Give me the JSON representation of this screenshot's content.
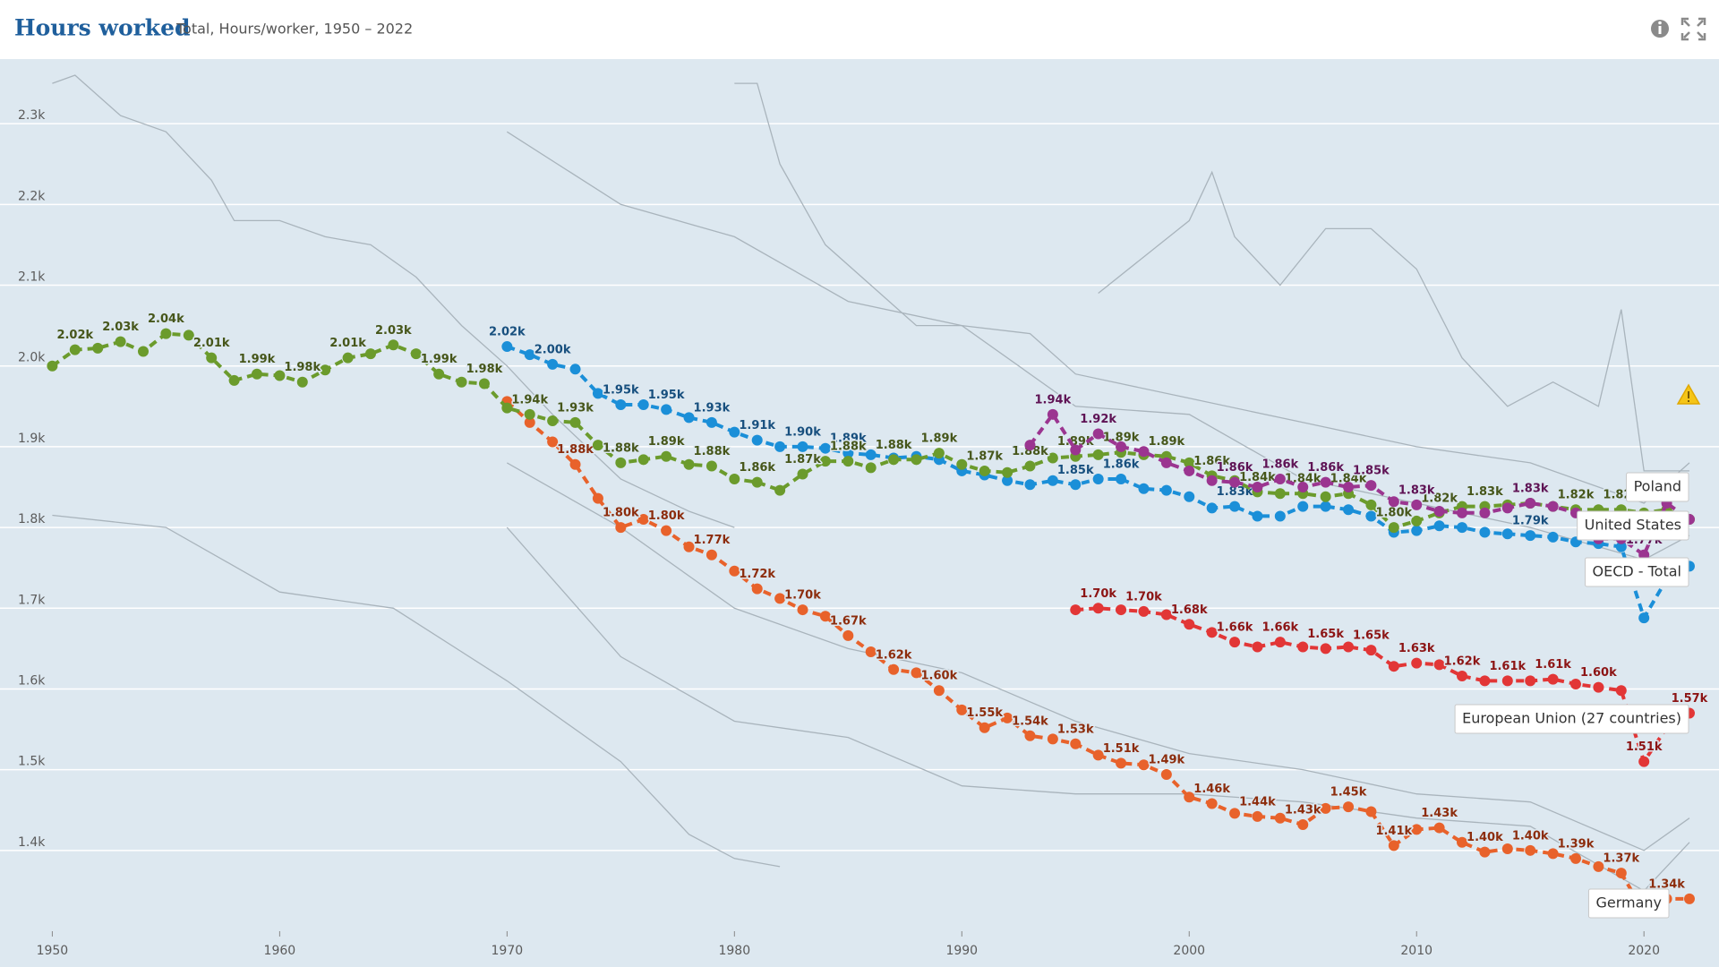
{
  "chart_data": {
    "type": "line",
    "title": "Hours worked",
    "subtitle": "Total, Hours/worker, 1950 – 2022",
    "xlim": [
      1947.7,
      2023.3
    ],
    "xticks": [
      1950,
      1960,
      1970,
      1980,
      1990,
      2000,
      2010,
      2020
    ],
    "ylim": [
      1300,
      2380
    ],
    "yticks": [
      {
        "value": 1400,
        "label": "1.4k"
      },
      {
        "value": 1500,
        "label": "1.5k"
      },
      {
        "value": 1600,
        "label": "1.6k"
      },
      {
        "value": 1700,
        "label": "1.7k"
      },
      {
        "value": 1800,
        "label": "1.8k"
      },
      {
        "value": 1900,
        "label": "1.9k"
      },
      {
        "value": 2000,
        "label": "2.0k"
      },
      {
        "value": 2100,
        "label": "2.1k"
      },
      {
        "value": 2200,
        "label": "2.2k"
      },
      {
        "value": 2300,
        "label": "2.3k"
      }
    ],
    "grid": true,
    "dashed": true,
    "x": [
      1950,
      1951,
      1952,
      1953,
      1954,
      1955,
      1956,
      1957,
      1958,
      1959,
      1960,
      1961,
      1962,
      1963,
      1964,
      1965,
      1966,
      1967,
      1968,
      1969,
      1970,
      1971,
      1972,
      1973,
      1974,
      1975,
      1976,
      1977,
      1978,
      1979,
      1980,
      1981,
      1982,
      1983,
      1984,
      1985,
      1986,
      1987,
      1988,
      1989,
      1990,
      1991,
      1992,
      1993,
      1994,
      1995,
      1996,
      1997,
      1998,
      1999,
      2000,
      2001,
      2002,
      2003,
      2004,
      2005,
      2006,
      2007,
      2008,
      2009,
      2010,
      2011,
      2012,
      2013,
      2014,
      2015,
      2016,
      2017,
      2018,
      2019,
      2020,
      2021,
      2022
    ],
    "series": [
      {
        "name": "Poland",
        "color": "#9b3590",
        "label_color": "#5e1254",
        "values": [
          null,
          null,
          null,
          null,
          null,
          null,
          null,
          null,
          null,
          null,
          null,
          null,
          null,
          null,
          null,
          null,
          null,
          null,
          null,
          null,
          null,
          null,
          null,
          null,
          null,
          null,
          null,
          null,
          null,
          null,
          null,
          null,
          null,
          null,
          null,
          null,
          null,
          null,
          null,
          null,
          null,
          null,
          null,
          1902,
          1940,
          1896,
          1916,
          1900,
          1894,
          1880,
          1870,
          1858,
          1856,
          1850,
          1860,
          1850,
          1856,
          1850,
          1852,
          1832,
          1828,
          1820,
          1818,
          1818,
          1824,
          1830,
          1826,
          1818,
          1786,
          1786,
          1766,
          1830,
          1810
        ],
        "value_labels": [
          null,
          null,
          null,
          null,
          null,
          null,
          null,
          null,
          null,
          null,
          null,
          null,
          null,
          null,
          null,
          null,
          null,
          null,
          null,
          null,
          null,
          null,
          null,
          null,
          null,
          null,
          null,
          null,
          null,
          null,
          null,
          null,
          null,
          null,
          null,
          null,
          null,
          null,
          null,
          null,
          null,
          null,
          null,
          null,
          "1.94k",
          null,
          "1.92k",
          null,
          null,
          null,
          null,
          null,
          "1.86k",
          null,
          "1.86k",
          null,
          "1.86k",
          null,
          "1.85k",
          null,
          "1.83k",
          null,
          null,
          null,
          null,
          "1.83k",
          null,
          null,
          null,
          null,
          "1.77k",
          null,
          null
        ]
      },
      {
        "name": "United States",
        "color": "#6b9b2c",
        "label_color": "#46561a",
        "values": [
          2000,
          2020,
          2022,
          2030,
          2018,
          2040,
          2038,
          2010,
          1982,
          1990,
          1988,
          1980,
          1995,
          2010,
          2015,
          2026,
          2015,
          1990,
          1980,
          1978,
          1948,
          1940,
          1932,
          1930,
          1902,
          1880,
          1884,
          1888,
          1878,
          1876,
          1860,
          1856,
          1846,
          1866,
          1882,
          1882,
          1874,
          1884,
          1884,
          1892,
          1878,
          1870,
          1868,
          1876,
          1886,
          1888,
          1890,
          1893,
          1890,
          1888,
          1880,
          1864,
          1858,
          1844,
          1842,
          1842,
          1838,
          1842,
          1828,
          1800,
          1808,
          1818,
          1826,
          1826,
          1828,
          1830,
          1826,
          1822,
          1822,
          1822,
          1818,
          1822,
          1810
        ],
        "value_labels": [
          null,
          "2.02k",
          null,
          "2.03k",
          null,
          "2.04k",
          null,
          "2.01k",
          null,
          "1.99k",
          null,
          "1.98k",
          null,
          "2.01k",
          null,
          "2.03k",
          null,
          "1.99k",
          null,
          "1.98k",
          null,
          "1.94k",
          null,
          "1.93k",
          null,
          "1.88k",
          null,
          "1.89k",
          null,
          "1.88k",
          null,
          "1.86k",
          null,
          "1.87k",
          null,
          "1.88k",
          null,
          "1.88k",
          null,
          "1.89k",
          null,
          "1.87k",
          null,
          "1.88k",
          null,
          "1.89k",
          null,
          "1.89k",
          null,
          "1.89k",
          null,
          "1.86k",
          null,
          "1.84k",
          null,
          "1.84k",
          null,
          "1.84k",
          null,
          "1.80k",
          null,
          "1.82k",
          null,
          "1.83k",
          null,
          "1.83k",
          null,
          "1.82k",
          null,
          "1.82k",
          null,
          null,
          null
        ]
      },
      {
        "name": "OECD - Total",
        "color": "#1b8fd8",
        "label_color": "#174f7e",
        "values": [
          null,
          null,
          null,
          null,
          null,
          null,
          null,
          null,
          null,
          null,
          null,
          null,
          null,
          null,
          null,
          null,
          null,
          null,
          null,
          null,
          2024,
          2014,
          2002,
          1996,
          1966,
          1952,
          1952,
          1946,
          1936,
          1930,
          1918,
          1908,
          1900,
          1900,
          1898,
          1892,
          1890,
          1886,
          1888,
          1884,
          1870,
          1865,
          1858,
          1853,
          1858,
          1853,
          1860,
          1860,
          1848,
          1846,
          1838,
          1824,
          1826,
          1814,
          1814,
          1826,
          1826,
          1822,
          1814,
          1794,
          1796,
          1802,
          1800,
          1794,
          1792,
          1790,
          1788,
          1782,
          1780,
          1776,
          1688,
          1736,
          1752
        ],
        "value_labels": [
          null,
          null,
          null,
          null,
          null,
          null,
          null,
          null,
          null,
          null,
          null,
          null,
          null,
          null,
          null,
          null,
          null,
          null,
          null,
          null,
          "2.02k",
          null,
          "2.00k",
          null,
          null,
          "1.95k",
          null,
          "1.95k",
          null,
          "1.93k",
          null,
          "1.91k",
          null,
          "1.90k",
          null,
          "1.89k",
          null,
          null,
          null,
          null,
          null,
          null,
          null,
          null,
          null,
          "1.85k",
          null,
          "1.86k",
          null,
          null,
          null,
          null,
          "1.83k",
          null,
          null,
          null,
          null,
          null,
          null,
          null,
          null,
          null,
          null,
          null,
          null,
          "1.79k",
          null,
          null,
          null,
          null,
          null,
          null,
          null
        ]
      },
      {
        "name": "European Union (27 countries)",
        "color": "#e23636",
        "label_color": "#8c1414",
        "values": [
          null,
          null,
          null,
          null,
          null,
          null,
          null,
          null,
          null,
          null,
          null,
          null,
          null,
          null,
          null,
          null,
          null,
          null,
          null,
          null,
          null,
          null,
          null,
          null,
          null,
          null,
          null,
          null,
          null,
          null,
          null,
          null,
          null,
          null,
          null,
          null,
          null,
          null,
          null,
          null,
          null,
          null,
          null,
          null,
          null,
          1698,
          1700,
          1698,
          1696,
          1692,
          1680,
          1670,
          1658,
          1652,
          1658,
          1652,
          1650,
          1652,
          1648,
          1628,
          1632,
          1630,
          1616,
          1610,
          1610,
          1610,
          1612,
          1606,
          1602,
          1598,
          1510,
          1552,
          1570
        ],
        "value_labels": [
          null,
          null,
          null,
          null,
          null,
          null,
          null,
          null,
          null,
          null,
          null,
          null,
          null,
          null,
          null,
          null,
          null,
          null,
          null,
          null,
          null,
          null,
          null,
          null,
          null,
          null,
          null,
          null,
          null,
          null,
          null,
          null,
          null,
          null,
          null,
          null,
          null,
          null,
          null,
          null,
          null,
          null,
          null,
          null,
          null,
          null,
          "1.70k",
          null,
          "1.70k",
          null,
          "1.68k",
          null,
          "1.66k",
          null,
          "1.66k",
          null,
          "1.65k",
          null,
          "1.65k",
          null,
          "1.63k",
          null,
          "1.62k",
          null,
          "1.61k",
          null,
          "1.61k",
          null,
          "1.60k",
          null,
          "1.51k",
          null,
          "1.57k"
        ]
      },
      {
        "name": "Germany",
        "color": "#e8622b",
        "label_color": "#8c2c0c",
        "values": [
          null,
          null,
          null,
          null,
          null,
          null,
          null,
          null,
          null,
          null,
          null,
          null,
          null,
          null,
          null,
          null,
          null,
          null,
          null,
          null,
          1956,
          1930,
          1906,
          1878,
          1836,
          1800,
          1810,
          1796,
          1776,
          1766,
          1746,
          1724,
          1712,
          1698,
          1690,
          1666,
          1646,
          1624,
          1620,
          1598,
          1574,
          1552,
          1564,
          1542,
          1538,
          1532,
          1518,
          1508,
          1506,
          1494,
          1466,
          1458,
          1446,
          1442,
          1440,
          1432,
          1452,
          1454,
          1448,
          1406,
          1426,
          1428,
          1410,
          1398,
          1402,
          1400,
          1396,
          1390,
          1380,
          1372,
          1324,
          1340,
          1340
        ],
        "value_labels": [
          null,
          null,
          null,
          null,
          null,
          null,
          null,
          null,
          null,
          null,
          null,
          null,
          null,
          null,
          null,
          null,
          null,
          null,
          null,
          null,
          null,
          null,
          null,
          "1.88k",
          null,
          "1.80k",
          null,
          "1.80k",
          null,
          "1.77k",
          null,
          "1.72k",
          null,
          "1.70k",
          null,
          "1.67k",
          null,
          "1.62k",
          null,
          "1.60k",
          null,
          "1.55k",
          null,
          "1.54k",
          null,
          "1.53k",
          null,
          "1.51k",
          null,
          "1.49k",
          null,
          "1.46k",
          null,
          "1.44k",
          null,
          "1.43k",
          null,
          "1.45k",
          null,
          "1.41k",
          null,
          "1.43k",
          null,
          "1.40k",
          null,
          "1.40k",
          null,
          "1.39k",
          null,
          "1.37k",
          null,
          "1.34k",
          null
        ]
      }
    ],
    "background_color": "#a9b4bc",
    "background_lines": [
      {
        "x": [
          1950,
          1951,
          1953,
          1955,
          1957,
          1958,
          1960,
          1962,
          1964,
          1966,
          1968,
          1970,
          1972,
          1975,
          1978,
          1980
        ],
        "values": [
          2350,
          2360,
          2310,
          2290,
          2230,
          2180,
          2180,
          2160,
          2150,
          2110,
          2050,
          2000,
          1940,
          1860,
          1820,
          1800
        ]
      },
      {
        "x": [
          1950,
          1955,
          1960,
          1965,
          1970,
          1975,
          1978,
          1980,
          1982
        ],
        "values": [
          1815,
          1800,
          1720,
          1700,
          1610,
          1510,
          1420,
          1390,
          1380
        ]
      },
      {
        "x": [
          1970,
          1975,
          1980,
          1985,
          1990,
          1995,
          2000,
          2005,
          2010,
          2015,
          2020,
          2022
        ],
        "values": [
          2290,
          2200,
          2160,
          2080,
          2050,
          1950,
          1940,
          1860,
          1830,
          1800,
          1760,
          1790
        ]
      },
      {
        "x": [
          1980,
          1981,
          1982,
          1984,
          1986,
          1988,
          1990,
          1993,
          1995,
          2000,
          2005,
          2010,
          2015,
          2020,
          2022
        ],
        "values": [
          2350,
          2350,
          2250,
          2150,
          2100,
          2050,
          2050,
          2040,
          1990,
          1960,
          1930,
          1900,
          1880,
          1830,
          1880
        ]
      },
      {
        "x": [
          1996,
          2000,
          2001,
          2002,
          2004,
          2006,
          2008,
          2010,
          2012,
          2014,
          2016,
          2018,
          2019,
          2020,
          2022
        ],
        "values": [
          2090,
          2180,
          2240,
          2160,
          2100,
          2170,
          2170,
          2120,
          2010,
          1950,
          1980,
          1950,
          2070,
          1870,
          1870
        ]
      },
      {
        "x": [
          1970,
          1975,
          1980,
          1985,
          1990,
          1995,
          2000,
          2005,
          2010,
          2015,
          2020,
          2022
        ],
        "values": [
          1880,
          1800,
          1700,
          1650,
          1620,
          1560,
          1520,
          1500,
          1470,
          1460,
          1400,
          1440
        ]
      },
      {
        "x": [
          1970,
          1975,
          1980,
          1985,
          1990,
          1995,
          2000,
          2005,
          2010,
          2015,
          2020,
          2022
        ],
        "values": [
          1800,
          1640,
          1560,
          1540,
          1480,
          1470,
          1470,
          1460,
          1440,
          1430,
          1350,
          1410
        ]
      }
    ]
  }
}
